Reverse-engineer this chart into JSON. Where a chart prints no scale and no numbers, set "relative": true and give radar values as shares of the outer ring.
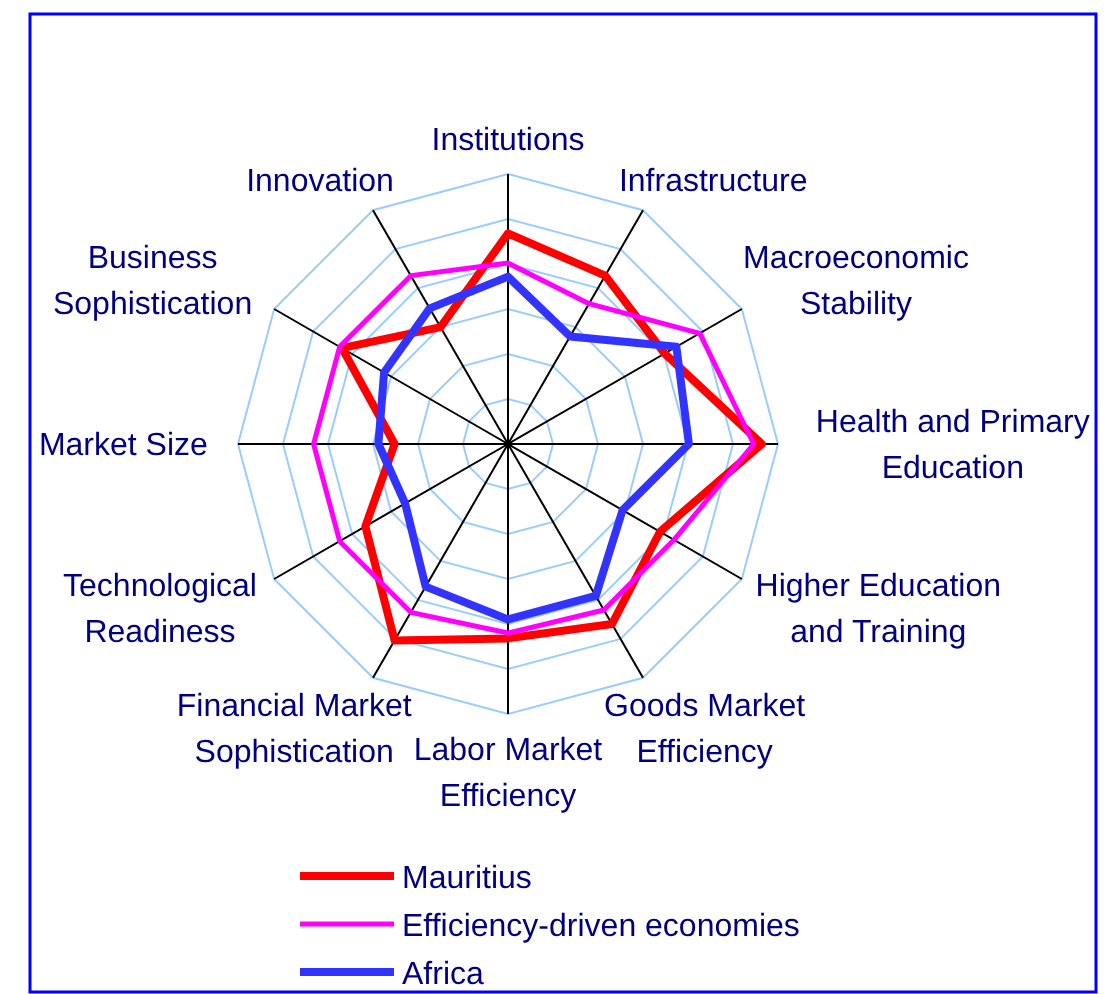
{
  "chart_data": {
    "type": "radar",
    "relative": true,
    "grid": true,
    "legend": "bottom",
    "categories": [
      "Institutions",
      "Infrastructure",
      "Macroeconomic\nStability",
      "Health and Primary\nEducation",
      "Higher Education\nand Training",
      "Goods Market\nEfficiency",
      "Labor Market\nEfficiency",
      "Financial Market\nSophistication",
      "Technological\nReadiness",
      "Market Size",
      "Business\nSophistication",
      "Innovation"
    ],
    "series": [
      {
        "name": "Mauritius",
        "color": "#ff0000",
        "values": [
          0.78,
          0.72,
          0.67,
          0.94,
          0.65,
          0.77,
          0.72,
          0.84,
          0.61,
          0.42,
          0.71,
          0.5
        ]
      },
      {
        "name": "Efficiency-driven economies",
        "color": "#ff00ff",
        "values": [
          0.67,
          0.6,
          0.82,
          0.91,
          0.71,
          0.71,
          0.7,
          0.72,
          0.72,
          0.72,
          0.72,
          0.72
        ]
      },
      {
        "name": "Africa",
        "color": "#3333ff",
        "values": [
          0.62,
          0.46,
          0.72,
          0.67,
          0.49,
          0.65,
          0.65,
          0.61,
          0.44,
          0.48,
          0.53,
          0.58
        ]
      }
    ]
  }
}
